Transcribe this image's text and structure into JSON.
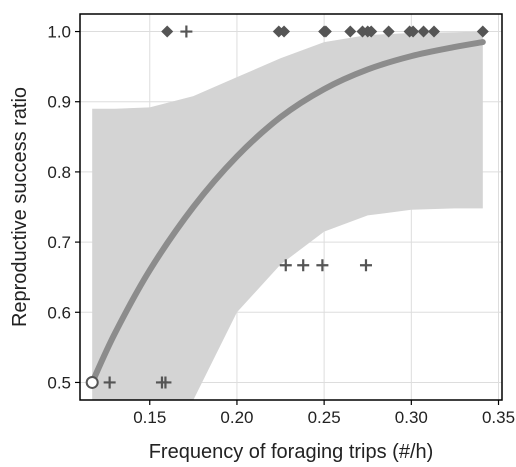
{
  "chart_data": {
    "type": "scatter",
    "xlabel": "Frequency of foraging trips (#/h)",
    "ylabel": "Reproductive success ratio",
    "xlim": [
      0.11,
      0.352
    ],
    "ylim": [
      0.475,
      1.025
    ],
    "x_ticks": [
      0.15,
      0.2,
      0.25,
      0.3,
      0.35
    ],
    "x_tick_labels": [
      "0.15",
      "0.20",
      "0.25",
      "0.30",
      "0.35"
    ],
    "y_ticks": [
      0.5,
      0.6,
      0.7,
      0.8,
      0.9,
      1.0
    ],
    "y_tick_labels": [
      "0.5",
      "0.6",
      "0.7",
      "0.8",
      "0.9",
      "1.0"
    ],
    "grid": true,
    "legend": "none",
    "colors": {
      "markers": "#555555",
      "fit_line": "#8c8c8c",
      "confidence_band": "#d4d4d4",
      "grid": "#dddddd"
    },
    "series": [
      {
        "marker": "diamond",
        "x": [
          0.16,
          0.224,
          0.227,
          0.25,
          0.251,
          0.265,
          0.272,
          0.275,
          0.277,
          0.287,
          0.299,
          0.301,
          0.307,
          0.313,
          0.341
        ],
        "y": [
          1.0,
          1.0,
          1.0,
          1.0,
          1.0,
          1.0,
          1.0,
          1.0,
          1.0,
          1.0,
          1.0,
          1.0,
          1.0,
          1.0,
          1.0
        ]
      },
      {
        "marker": "plus",
        "x": [
          0.127,
          0.157,
          0.159,
          0.171,
          0.228,
          0.238,
          0.249,
          0.274
        ],
        "y": [
          0.5,
          0.5,
          0.5,
          1.0,
          0.667,
          0.667,
          0.667,
          0.667
        ]
      },
      {
        "marker": "open-circle",
        "x": [
          0.117
        ],
        "y": [
          0.5
        ]
      }
    ],
    "fit": {
      "type": "logistic",
      "x": [
        0.117,
        0.13,
        0.15,
        0.175,
        0.2,
        0.225,
        0.25,
        0.275,
        0.3,
        0.325,
        0.341
      ],
      "y": [
        0.5,
        0.57,
        0.66,
        0.75,
        0.822,
        0.878,
        0.918,
        0.946,
        0.965,
        0.978,
        0.985
      ],
      "ci_lower": [
        null,
        null,
        null,
        0.475,
        0.6,
        0.668,
        0.715,
        0.738,
        0.746,
        0.748,
        0.748
      ],
      "ci_upper": [
        0.89,
        0.89,
        0.892,
        0.908,
        0.935,
        0.962,
        0.985,
        0.995,
        0.998,
        0.999,
        1.0
      ]
    }
  }
}
